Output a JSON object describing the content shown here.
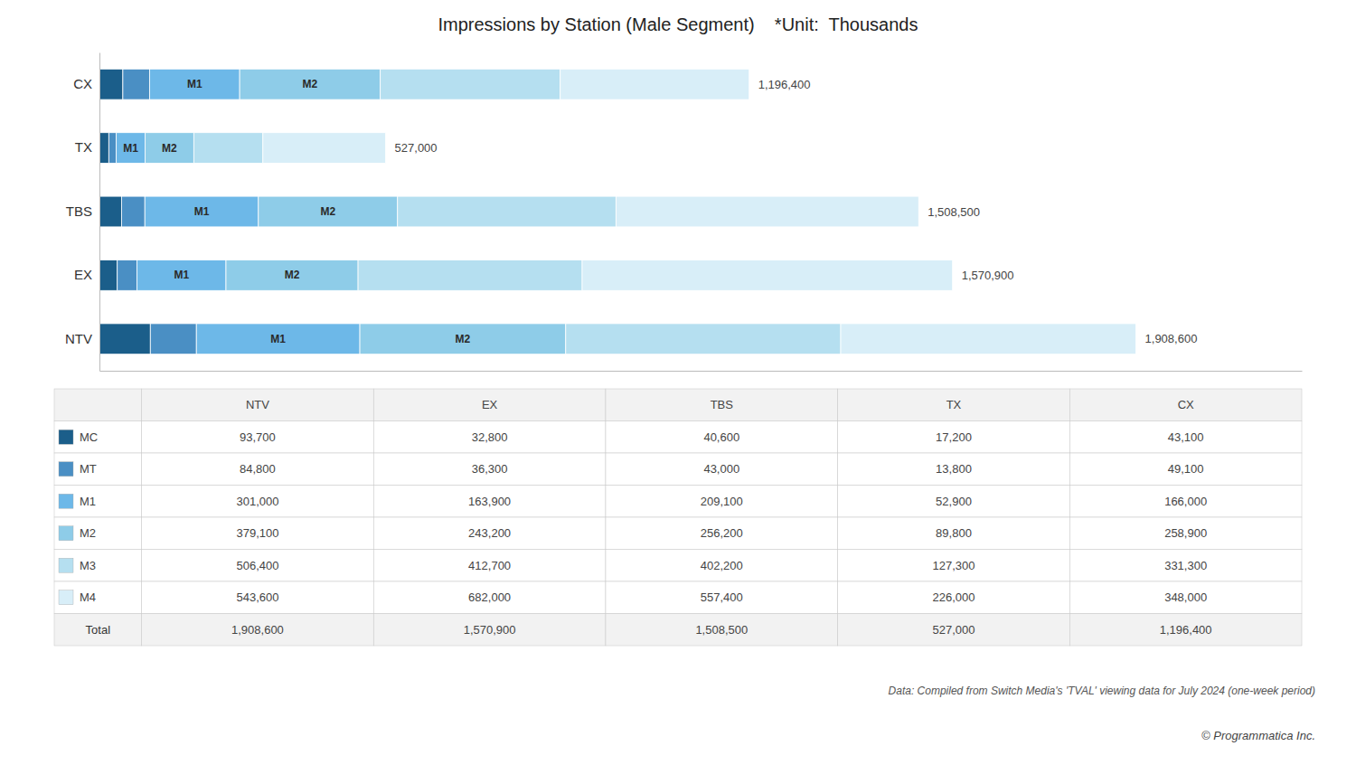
{
  "chart_data": [
    {
      "type": "bar",
      "orientation": "horizontal",
      "stacked": true,
      "title": "Impressions by Station (Male Segment)    *Unit:  Thousands",
      "categories": [
        "NTV",
        "EX",
        "TBS",
        "TX",
        "CX"
      ],
      "series": [
        {
          "name": "MC",
          "color": "#1b5e8a",
          "values": [
            93700,
            32800,
            40600,
            17200,
            43100
          ]
        },
        {
          "name": "MT",
          "color": "#4a8fc4",
          "values": [
            84800,
            36300,
            43000,
            13800,
            49100
          ]
        },
        {
          "name": "M1",
          "color": "#6db8e8",
          "values": [
            301000,
            163900,
            209100,
            52900,
            166000
          ],
          "labels": [
            "M1",
            "M1",
            "M1",
            "M1",
            "M1"
          ]
        },
        {
          "name": "M2",
          "color": "#8ecce8",
          "values": [
            379100,
            243200,
            256200,
            89800,
            258900
          ],
          "labels": [
            "M2",
            "M2",
            "M2",
            "M2",
            "M2"
          ]
        },
        {
          "name": "M3",
          "color": "#b5dff0",
          "values": [
            506400,
            412700,
            402200,
            127300,
            331300
          ]
        },
        {
          "name": "M4",
          "color": "#d8eef8",
          "values": [
            543600,
            682000,
            557400,
            226000,
            348000
          ]
        }
      ],
      "totals": [
        1908600,
        1570900,
        1508500,
        527000,
        1196400
      ],
      "total_labels": [
        "1,908,600",
        "1,570,900",
        "1,508,500",
        "527,000",
        "1,196,400"
      ],
      "xlim": [
        0,
        2213976
      ],
      "grid": false,
      "tick_labels": "y",
      "annotations": [
        "Data: Compiled from Switch Media's 'TVAL' viewing data for July 2024 (one-week period)",
        "© Programmatica Inc."
      ]
    },
    {
      "type": "table",
      "columns": [
        "NTV",
        "EX",
        "TBS",
        "TX",
        "CX"
      ],
      "rows": [
        "MC",
        "MT",
        "M1",
        "M2",
        "M3",
        "M4",
        "Total"
      ],
      "cells": [
        [
          93700,
          32800,
          40600,
          17200,
          43100
        ],
        [
          84800,
          36300,
          43000,
          13800,
          49100
        ],
        [
          301000,
          163900,
          209100,
          52900,
          166000
        ],
        [
          379100,
          243200,
          256200,
          89800,
          258900
        ],
        [
          506400,
          412700,
          402200,
          127300,
          331300
        ],
        [
          543600,
          682000,
          557400,
          226000,
          348000
        ],
        [
          1908600,
          1570900,
          1508500,
          527000,
          1196400
        ]
      ],
      "cell_labels": [
        [
          "93,700",
          "32,800",
          "40,600",
          "17,200",
          "43,100"
        ],
        [
          "84,800",
          "36,300",
          "43,000",
          "13,800",
          "49,100"
        ],
        [
          "301,000",
          "163,900",
          "209,100",
          "52,900",
          "166,000"
        ],
        [
          "379,100",
          "243,200",
          "256,200",
          "89,800",
          "258,900"
        ],
        [
          "506,400",
          "412,700",
          "402,200",
          "127,300",
          "331,300"
        ],
        [
          "543,600",
          "682,000",
          "557,400",
          "226,000",
          "348,000"
        ],
        [
          "1,908,600",
          "1,570,900",
          "1,508,500",
          "527,000",
          "1,196,400"
        ]
      ]
    }
  ]
}
